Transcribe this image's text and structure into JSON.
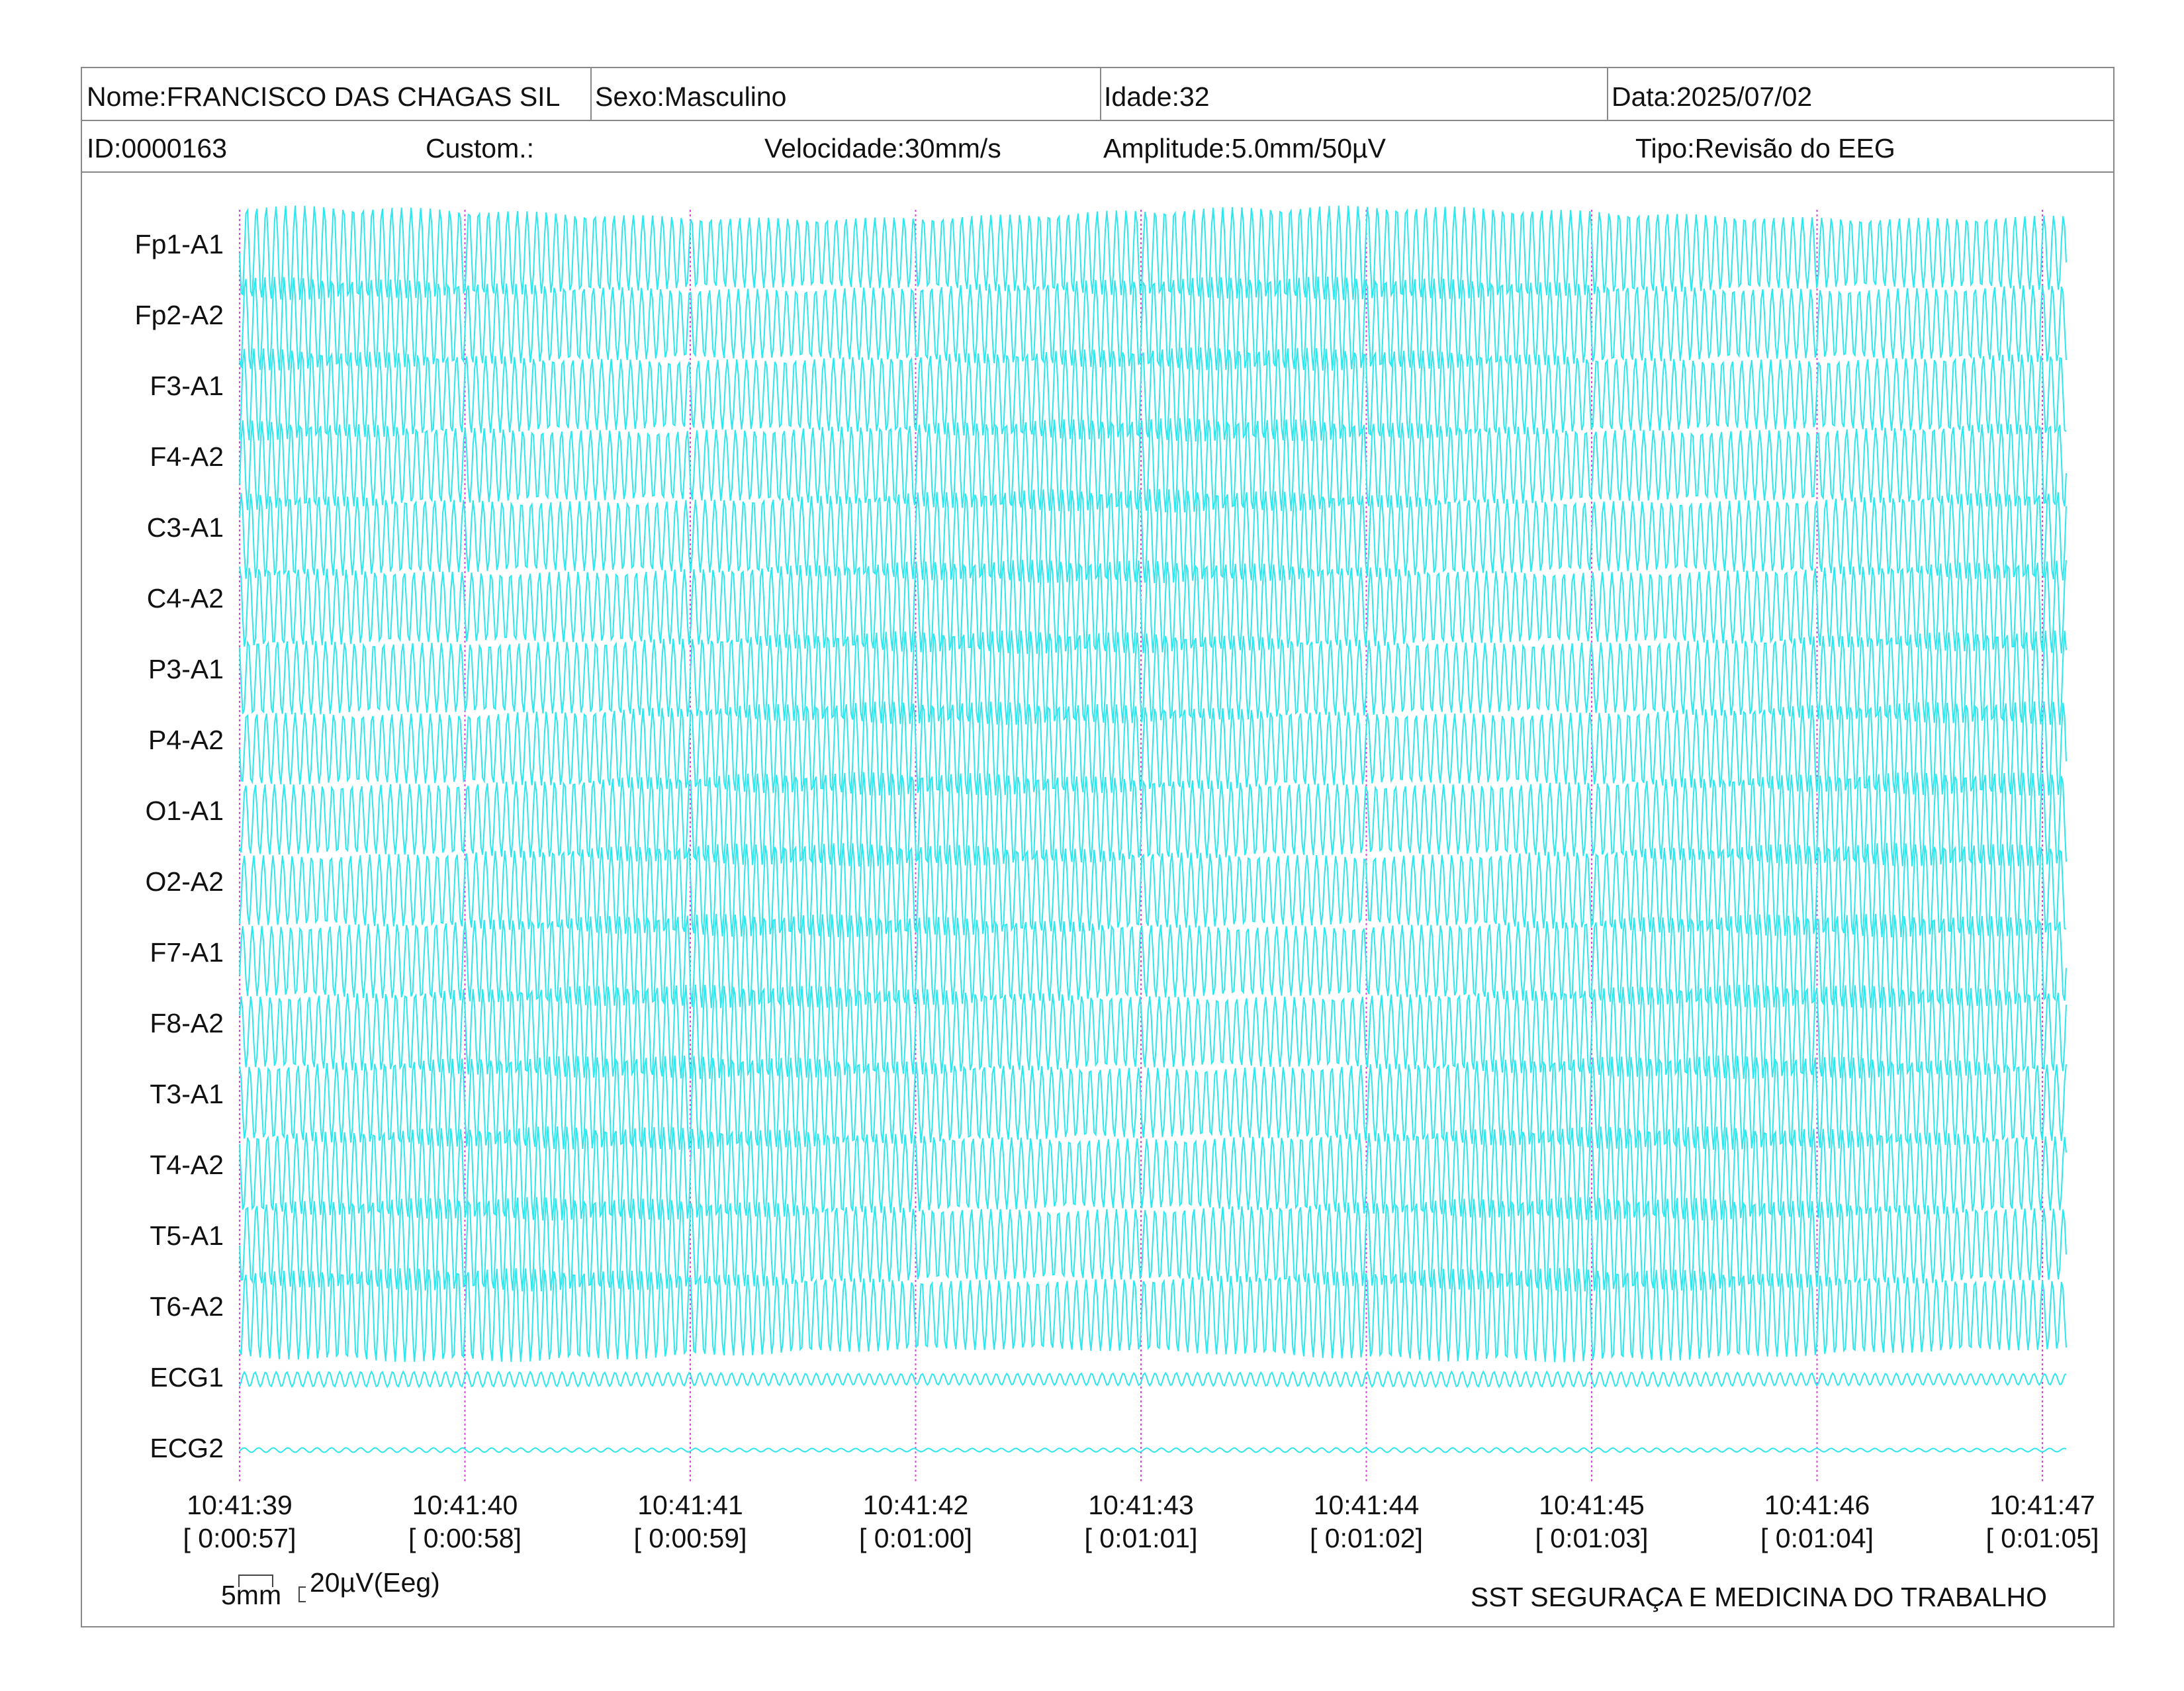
{
  "header": {
    "row1": [
      "Nome:FRANCISCO DAS CHAGAS SIL",
      "Sexo:Masculino",
      "Idade:32",
      "Data:2025/07/02"
    ],
    "row2": [
      "ID:0000163",
      "Custom.:",
      "Velocidade:30mm/s",
      "Amplitude:5.0mm/50µV",
      "Tipo:Revisão do EEG"
    ]
  },
  "channels": [
    "Fp1-A1",
    "Fp2-A2",
    "F3-A1",
    "F4-A2",
    "C3-A1",
    "C4-A2",
    "P3-A1",
    "P4-A2",
    "O1-A1",
    "O2-A2",
    "F7-A1",
    "F8-A2",
    "T3-A1",
    "T4-A2",
    "T5-A1",
    "T6-A2",
    "ECG1",
    "ECG2"
  ],
  "time_marks": [
    {
      "time": "10:41:39",
      "elapsed": "[ 0:00:57]"
    },
    {
      "time": "10:41:40",
      "elapsed": "[ 0:00:58]"
    },
    {
      "time": "10:41:41",
      "elapsed": "[ 0:00:59]"
    },
    {
      "time": "10:41:42",
      "elapsed": "[ 0:01:00]"
    },
    {
      "time": "10:41:43",
      "elapsed": "[ 0:01:01]"
    },
    {
      "time": "10:41:44",
      "elapsed": "[ 0:01:02]"
    },
    {
      "time": "10:41:45",
      "elapsed": "[ 0:01:03]"
    },
    {
      "time": "10:41:46",
      "elapsed": "[ 0:01:04]"
    },
    {
      "time": "10:41:47",
      "elapsed": "[ 0:01:05]"
    }
  ],
  "scale": {
    "length": "5mm",
    "amplitude": "20µV(Eeg)"
  },
  "footer": "SST SEGURAÇA E MEDICINA DO TRABALHO"
}
